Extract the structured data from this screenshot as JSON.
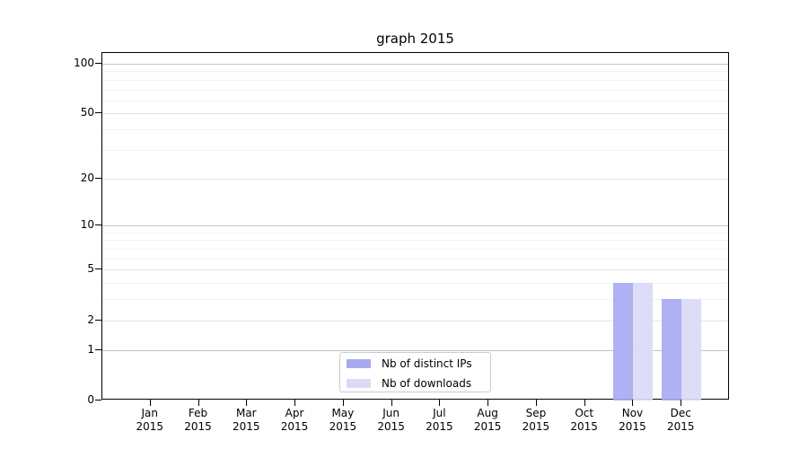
{
  "chart_data": {
    "type": "bar",
    "title": "graph 2015",
    "y_scale": "log10(1+x)",
    "ylim": [
      0,
      116
    ],
    "y_ticks": [
      0,
      1,
      2,
      5,
      10,
      20,
      50,
      100
    ],
    "y_minor_ticks": [
      3,
      4,
      6,
      7,
      8,
      9,
      30,
      40,
      60,
      70,
      80,
      90
    ],
    "y_decade_ticks": [
      1,
      10,
      100
    ],
    "categories": [
      "Jan",
      "Feb",
      "Mar",
      "Apr",
      "May",
      "Jun",
      "Jul",
      "Aug",
      "Sep",
      "Oct",
      "Nov",
      "Dec"
    ],
    "x_year": "2015",
    "grid": "horizontal",
    "legend_position": "bottom-center",
    "series": [
      {
        "name": "Nb of distinct IPs",
        "color": "#a9a9f2",
        "values": [
          0,
          0,
          0,
          0,
          0,
          0,
          0,
          0,
          0,
          0,
          4,
          3
        ]
      },
      {
        "name": "Nb of downloads",
        "color": "#dadaf7",
        "values": [
          0,
          0,
          0,
          0,
          0,
          0,
          0,
          0,
          0,
          0,
          4,
          3
        ]
      }
    ]
  }
}
